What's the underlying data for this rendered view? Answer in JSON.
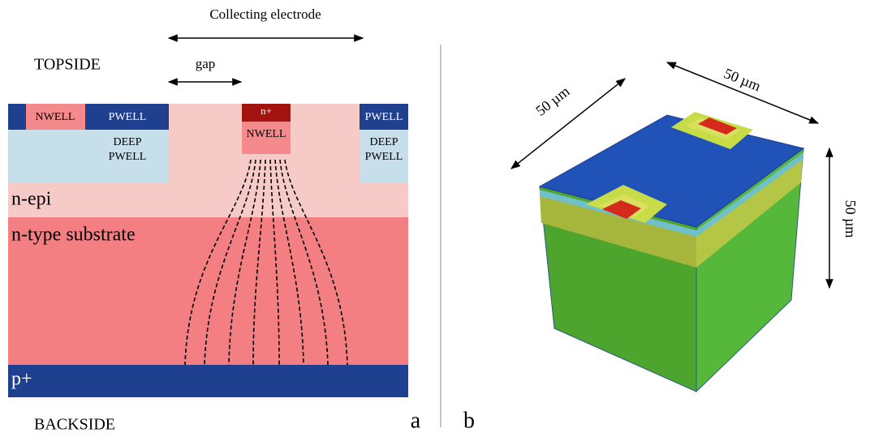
{
  "panel_a": {
    "label": "a",
    "topside": "TOPSIDE",
    "backside": "BACKSIDE",
    "collecting_electrode": "Collecting electrode",
    "gap": "gap",
    "left_nwell": "NWELL",
    "left_pwell": "PWELL",
    "left_deep_pwell": [
      "DEEP",
      "PWELL"
    ],
    "n_plus": "n+",
    "center_nwell": "NWELL",
    "right_pwell": "PWELL",
    "right_deep_pwell": [
      "DEEP",
      "PWELL"
    ],
    "n_epi": "n-epi",
    "substrate": "n-type substrate",
    "p_plus": "p+"
  },
  "panel_b": {
    "label": "b",
    "dim_left": "50 µm",
    "dim_right": "50 µm",
    "dim_vertical": "50 µm"
  }
}
